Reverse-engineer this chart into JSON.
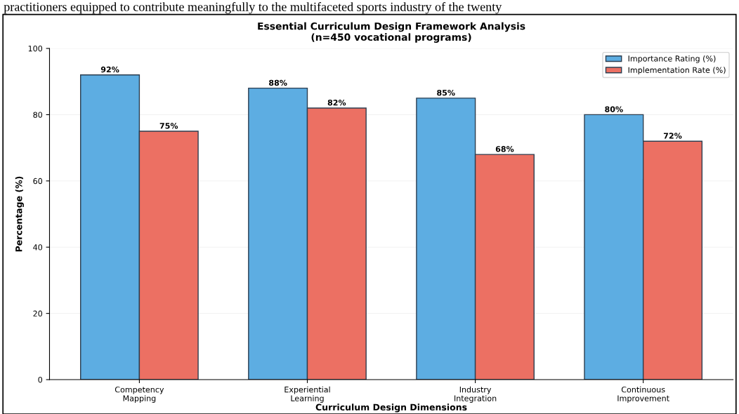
{
  "chart_data": {
    "type": "bar",
    "title": "Essential Curriculum Design Framework Analysis\n(n=450 vocational programs)",
    "xlabel": "Curriculum Design Dimensions",
    "ylabel": "Percentage (%)",
    "annotations": [
      "practitioners equipped to contribute meaningfully to the multifaceted sports industry of the twenty"
    ],
    "categories": [
      "Competency\nMapping",
      "Experiential\nLearning",
      "Industry\nIntegration",
      "Continuous\nImprovement"
    ],
    "series": [
      {
        "name": "Importance Rating (%)",
        "color": "#5dade2",
        "values": [
          92,
          88,
          85,
          80
        ],
        "value_labels": [
          "92%",
          "88%",
          "85%",
          "80%"
        ]
      },
      {
        "name": "Implementation Rate (%)",
        "color": "#ec7063",
        "values": [
          75,
          82,
          68,
          72
        ],
        "value_labels": [
          "75%",
          "82%",
          "68%",
          "72%"
        ]
      }
    ],
    "ylim": [
      0,
      100
    ],
    "yticks": [
      0,
      20,
      40,
      60,
      80,
      100
    ],
    "grid": "y",
    "legend": "top right"
  }
}
